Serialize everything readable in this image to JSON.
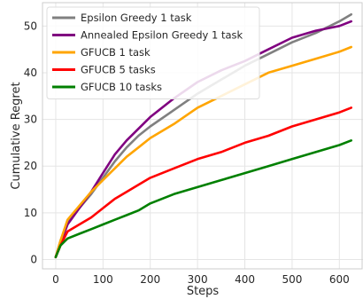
{
  "chart_data": {
    "type": "line",
    "title": "",
    "xlabel": "Steps",
    "ylabel": "Cumulative Regret",
    "xlim": [
      -28,
      650
    ],
    "ylim": [
      -2,
      55
    ],
    "xticks": [
      0,
      100,
      200,
      300,
      400,
      500,
      600
    ],
    "yticks": [
      0,
      10,
      20,
      30,
      40,
      50
    ],
    "grid": true,
    "legend_position": "top-left",
    "series": [
      {
        "name": "Epsilon Greedy 1 task",
        "color": "#808080",
        "x": [
          0,
          10,
          25,
          50,
          75,
          100,
          125,
          150,
          175,
          200,
          250,
          300,
          350,
          400,
          450,
          500,
          550,
          600,
          625
        ],
        "y": [
          0.5,
          4,
          8,
          11,
          14,
          17.5,
          21,
          24,
          26.5,
          28.5,
          32,
          35.5,
          38.5,
          41.5,
          44,
          46.5,
          48.5,
          51,
          52.5
        ]
      },
      {
        "name": "Annealed Epsilon Greedy 1 task",
        "color": "#800080",
        "x": [
          0,
          10,
          25,
          50,
          75,
          100,
          125,
          150,
          175,
          200,
          250,
          300,
          350,
          400,
          450,
          500,
          550,
          600,
          625
        ],
        "y": [
          0.5,
          3.5,
          7.5,
          11,
          14.5,
          18.5,
          22.5,
          25.5,
          28,
          30.5,
          34.5,
          38,
          40.5,
          42.5,
          45,
          47.5,
          49,
          50,
          51
        ]
      },
      {
        "name": "GFUCB 1 task",
        "color": "#FFA500",
        "x": [
          0,
          10,
          25,
          50,
          75,
          100,
          125,
          150,
          175,
          200,
          250,
          300,
          350,
          400,
          450,
          500,
          550,
          600,
          625
        ],
        "y": [
          0.5,
          4,
          8.5,
          11.5,
          14.5,
          17,
          19.5,
          22,
          24,
          26,
          29,
          32.5,
          35,
          37.5,
          40,
          41.5,
          43,
          44.5,
          45.5
        ]
      },
      {
        "name": "GFUCB 5 tasks",
        "color": "#FF0000",
        "x": [
          0,
          10,
          25,
          50,
          75,
          100,
          125,
          150,
          175,
          200,
          250,
          300,
          350,
          400,
          450,
          500,
          550,
          600,
          625
        ],
        "y": [
          0.5,
          3,
          6,
          7.5,
          9,
          11,
          13,
          14.5,
          16,
          17.5,
          19.5,
          21.5,
          23,
          25,
          26.5,
          28.5,
          30,
          31.5,
          32.5
        ]
      },
      {
        "name": "GFUCB 10 tasks",
        "color": "#008000",
        "x": [
          0,
          10,
          25,
          50,
          75,
          100,
          125,
          150,
          175,
          200,
          250,
          300,
          350,
          400,
          450,
          500,
          550,
          600,
          625
        ],
        "y": [
          0.5,
          3,
          4.5,
          5.5,
          6.5,
          7.5,
          8.5,
          9.5,
          10.5,
          12,
          14,
          15.5,
          17,
          18.5,
          20,
          21.5,
          23,
          24.5,
          25.5
        ]
      }
    ]
  }
}
